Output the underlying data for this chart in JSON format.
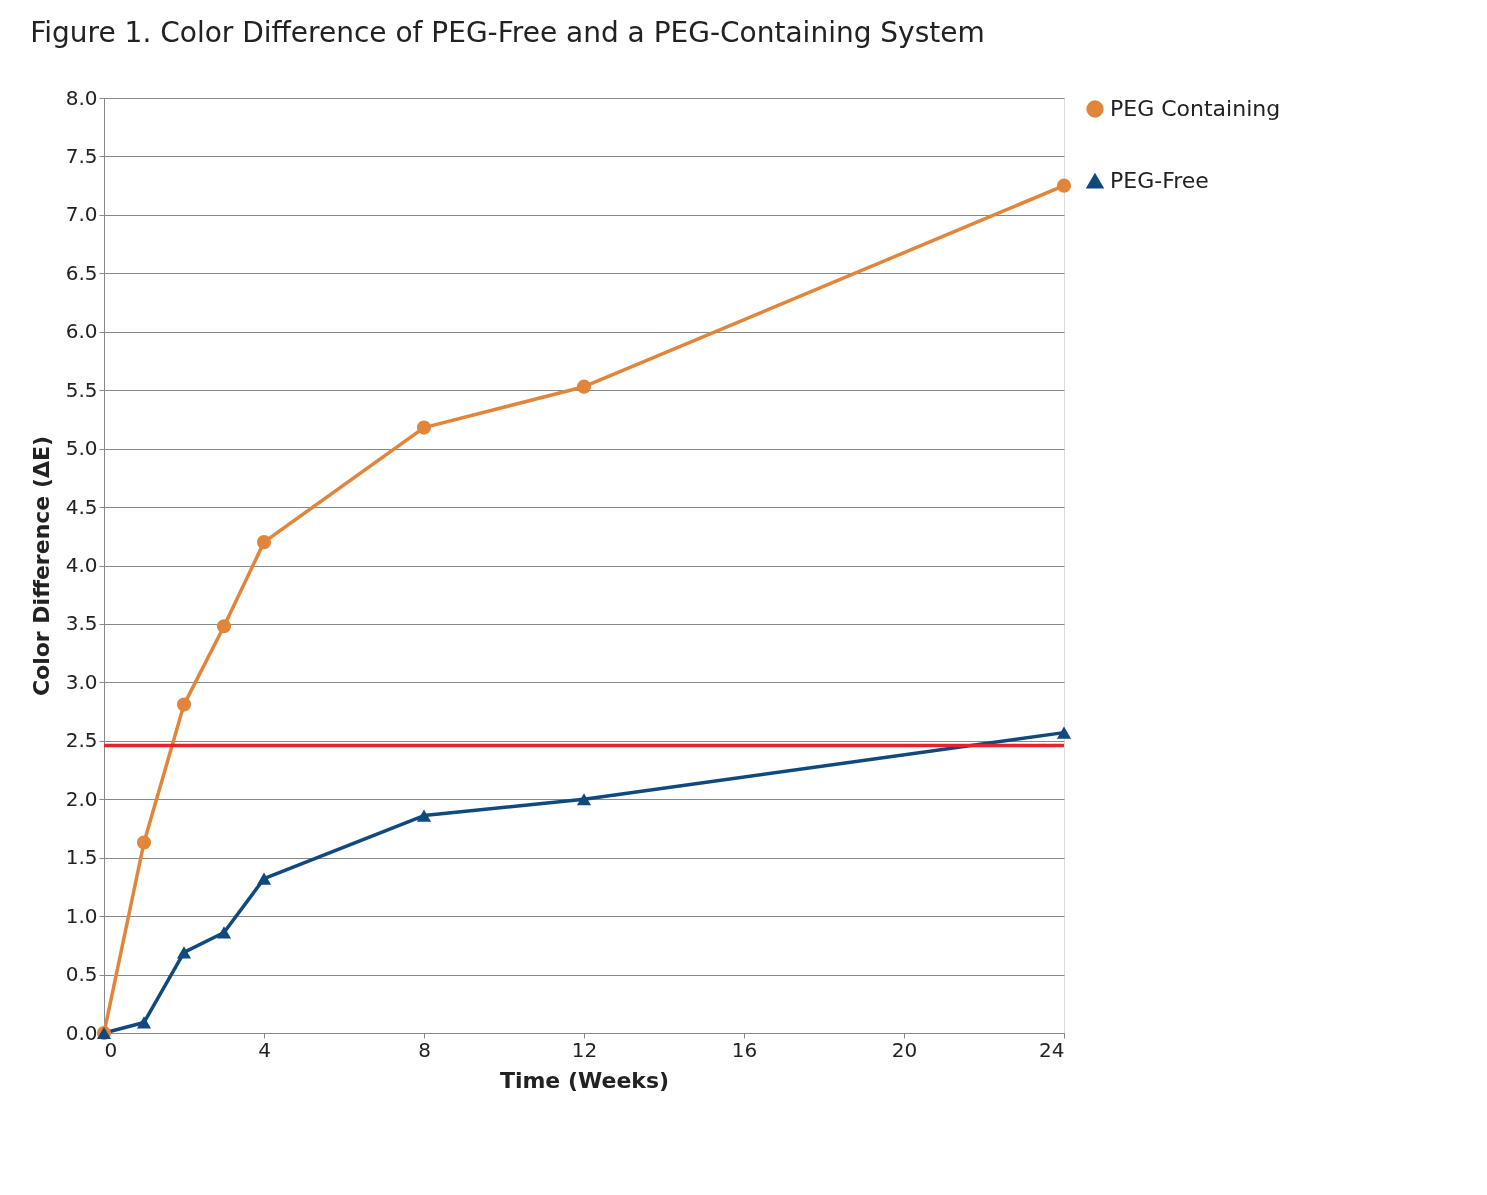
{
  "chart_data": {
    "type": "line",
    "title": "Figure 1.  Color Difference of PEG-Free and a PEG-Containing System",
    "xlabel": "Time (Weeks)",
    "ylabel": "Color Difference (ΔE)",
    "x": [
      0,
      1,
      2,
      3,
      4,
      8,
      12,
      24
    ],
    "series": [
      {
        "name": "PEG Containing",
        "color": "#e0853a",
        "marker": "circle",
        "values": [
          0,
          1.63,
          2.81,
          3.48,
          4.2,
          5.18,
          5.53,
          7.25
        ]
      },
      {
        "name": "PEG-Free",
        "color": "#10497e",
        "marker": "triangle",
        "values": [
          0,
          0.09,
          0.69,
          0.86,
          1.32,
          1.86,
          2.0,
          2.57
        ]
      }
    ],
    "xlim": [
      0,
      24
    ],
    "xticks": [
      0,
      4,
      8,
      12,
      16,
      20,
      24
    ],
    "ylim": [
      0,
      8
    ],
    "yticks": [
      {
        "value": 0,
        "label": "0.0"
      },
      {
        "value": 0.5,
        "label": "0.5"
      },
      {
        "value": 1,
        "label": "1.0"
      },
      {
        "value": 1.5,
        "label": "1.5"
      },
      {
        "value": 2,
        "label": "2.0"
      },
      {
        "value": 2.5,
        "label": "2.5"
      },
      {
        "value": 3,
        "label": "3.0"
      },
      {
        "value": 3.5,
        "label": "3.5"
      },
      {
        "value": 4,
        "label": "4.0"
      },
      {
        "value": 4.5,
        "label": "4.5"
      },
      {
        "value": 5,
        "label": "5.0"
      },
      {
        "value": 5.5,
        "label": "5.5"
      },
      {
        "value": 6,
        "label": "6.0"
      },
      {
        "value": 6.5,
        "label": "6.5"
      },
      {
        "value": 7,
        "label": "7.0"
      },
      {
        "value": 7.5,
        "label": "7.5"
      },
      {
        "value": 8,
        "label": "8.0"
      }
    ],
    "ref_lines": [
      {
        "axis": "y",
        "value": 2.46,
        "color": "#e3242b"
      }
    ],
    "grid": "y",
    "legend": "right",
    "line_style": "solid"
  }
}
